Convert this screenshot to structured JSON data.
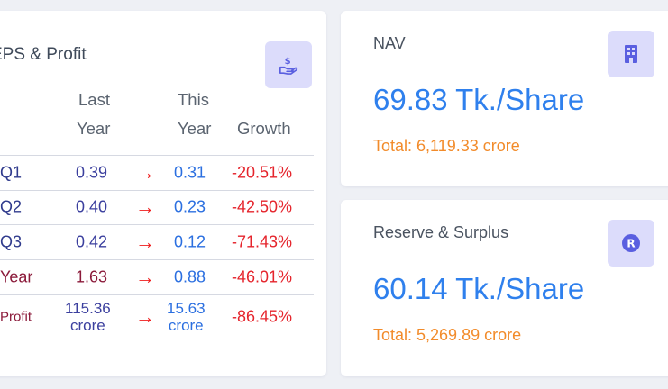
{
  "eps_card": {
    "title": "EPS & Profit",
    "icon": "hand-dollar-icon",
    "headers": {
      "last_line1": "Last",
      "last_line2": "Year",
      "this_line1": "This",
      "this_line2": "Year",
      "growth": "Growth"
    },
    "rows": [
      {
        "label": "Q1",
        "last": "0.39",
        "this": "0.31",
        "growth": "-20.51%"
      },
      {
        "label": "Q2",
        "last": "0.40",
        "this": "0.23",
        "growth": "-42.50%"
      },
      {
        "label": "Q3",
        "last": "0.42",
        "this": "0.12",
        "growth": "-71.43%"
      },
      {
        "label": "Year",
        "last": "1.63",
        "this": "0.88",
        "growth": "-46.01%"
      }
    ],
    "profit_row": {
      "label": "Profit",
      "last_value": "115.36",
      "last_unit": "crore",
      "this_value": "15.63",
      "this_unit": "crore",
      "growth": "-86.45%"
    },
    "arrow": "→"
  },
  "nav_card": {
    "title": "NAV",
    "icon": "building-icon",
    "value": "69.83 Tk./Share",
    "total": "Total: 6,119.33 crore"
  },
  "reserve_card": {
    "title": "Reserve & Surplus",
    "icon": "registered-r-icon",
    "icon_text": "R",
    "value": "60.14 Tk./Share",
    "total": "Total: 5,269.89 crore"
  }
}
